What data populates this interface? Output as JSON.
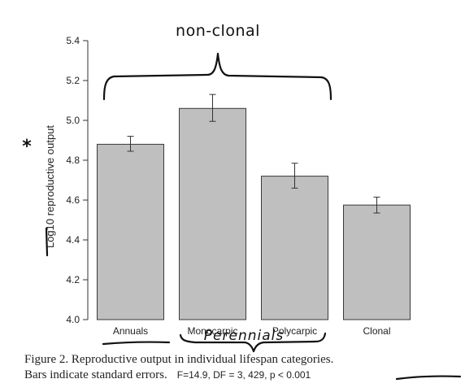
{
  "chart_data": {
    "type": "bar",
    "title": "",
    "xlabel": "",
    "ylabel": "Log10 reproductive output",
    "categories": [
      "Annuals",
      "Monocarpic",
      "Polycarpic",
      "Clonal"
    ],
    "values": [
      4.88,
      5.06,
      4.72,
      4.575
    ],
    "error_low": [
      4.845,
      4.995,
      4.66,
      4.535
    ],
    "error_high": [
      4.92,
      5.13,
      4.785,
      4.615
    ],
    "ylim": [
      4.0,
      5.4
    ],
    "yticks": [
      4.0,
      4.2,
      4.4,
      4.6,
      4.8,
      5.0,
      5.2,
      5.4
    ],
    "ytick_labels": [
      "4.0",
      "4.2",
      "4.4",
      "4.6",
      "4.8",
      "5.0",
      "5.2",
      "5.4"
    ],
    "bar_color": "#bfbfbf",
    "bar_edge_color": "#3a3a3a",
    "grid": false,
    "legend": "none"
  },
  "annotations": {
    "bracket_label": "non-clonal",
    "perennials_label": "Perennials",
    "asterisk": "*",
    "handwriting_color": "#111111"
  },
  "caption": {
    "line1": "Figure 2. Reproductive output in individual lifespan categories.",
    "line2": "Bars indicate standard errors.",
    "stats": "F=14.9, DF = 3, 429, p < 0.001"
  }
}
